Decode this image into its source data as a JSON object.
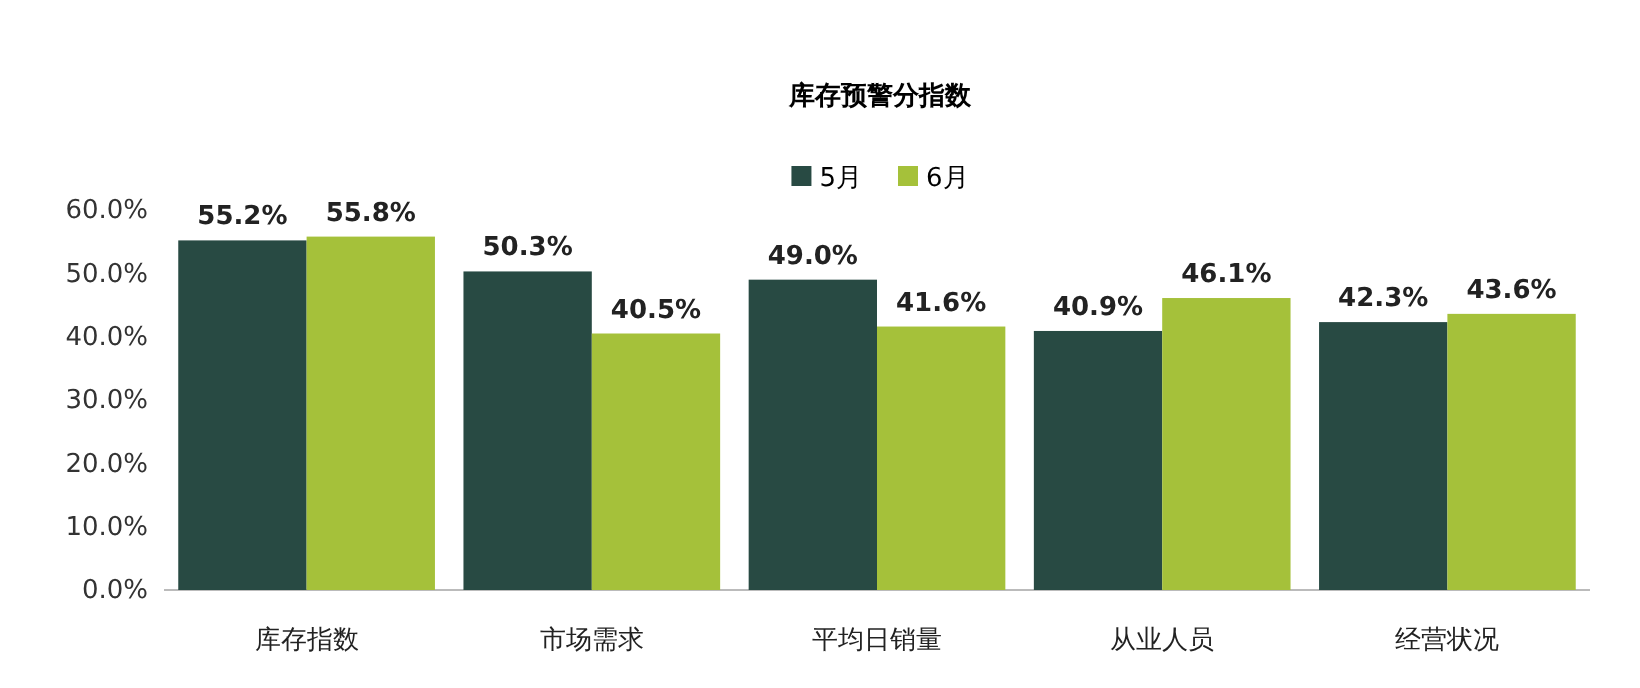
{
  "chart_data": {
    "type": "bar",
    "title": "库存预警分指数",
    "categories": [
      "库存指数",
      "市场需求",
      "平均日销量",
      "从业人员",
      "经营状况"
    ],
    "series": [
      {
        "name": "5月",
        "color": "#284a43",
        "values": [
          55.2,
          50.3,
          49.0,
          40.9,
          42.3
        ],
        "value_labels": [
          "55.2%",
          "50.3%",
          "49.0%",
          "40.9%",
          "42.3%"
        ]
      },
      {
        "name": "6月",
        "color": "#a5c13a",
        "values": [
          55.8,
          40.5,
          41.6,
          46.1,
          43.6
        ],
        "value_labels": [
          "55.8%",
          "40.5%",
          "41.6%",
          "46.1%",
          "43.6%"
        ]
      }
    ],
    "ylim": [
      0,
      60
    ],
    "yticks": [
      {
        "value": 0,
        "label": "0.0%"
      },
      {
        "value": 10,
        "label": "10.0%"
      },
      {
        "value": 20,
        "label": "20.0%"
      },
      {
        "value": 30,
        "label": "30.0%"
      },
      {
        "value": 40,
        "label": "40.0%"
      },
      {
        "value": 50,
        "label": "50.0%"
      },
      {
        "value": 60,
        "label": "60.0%"
      }
    ],
    "grid": false,
    "legend": "top"
  }
}
